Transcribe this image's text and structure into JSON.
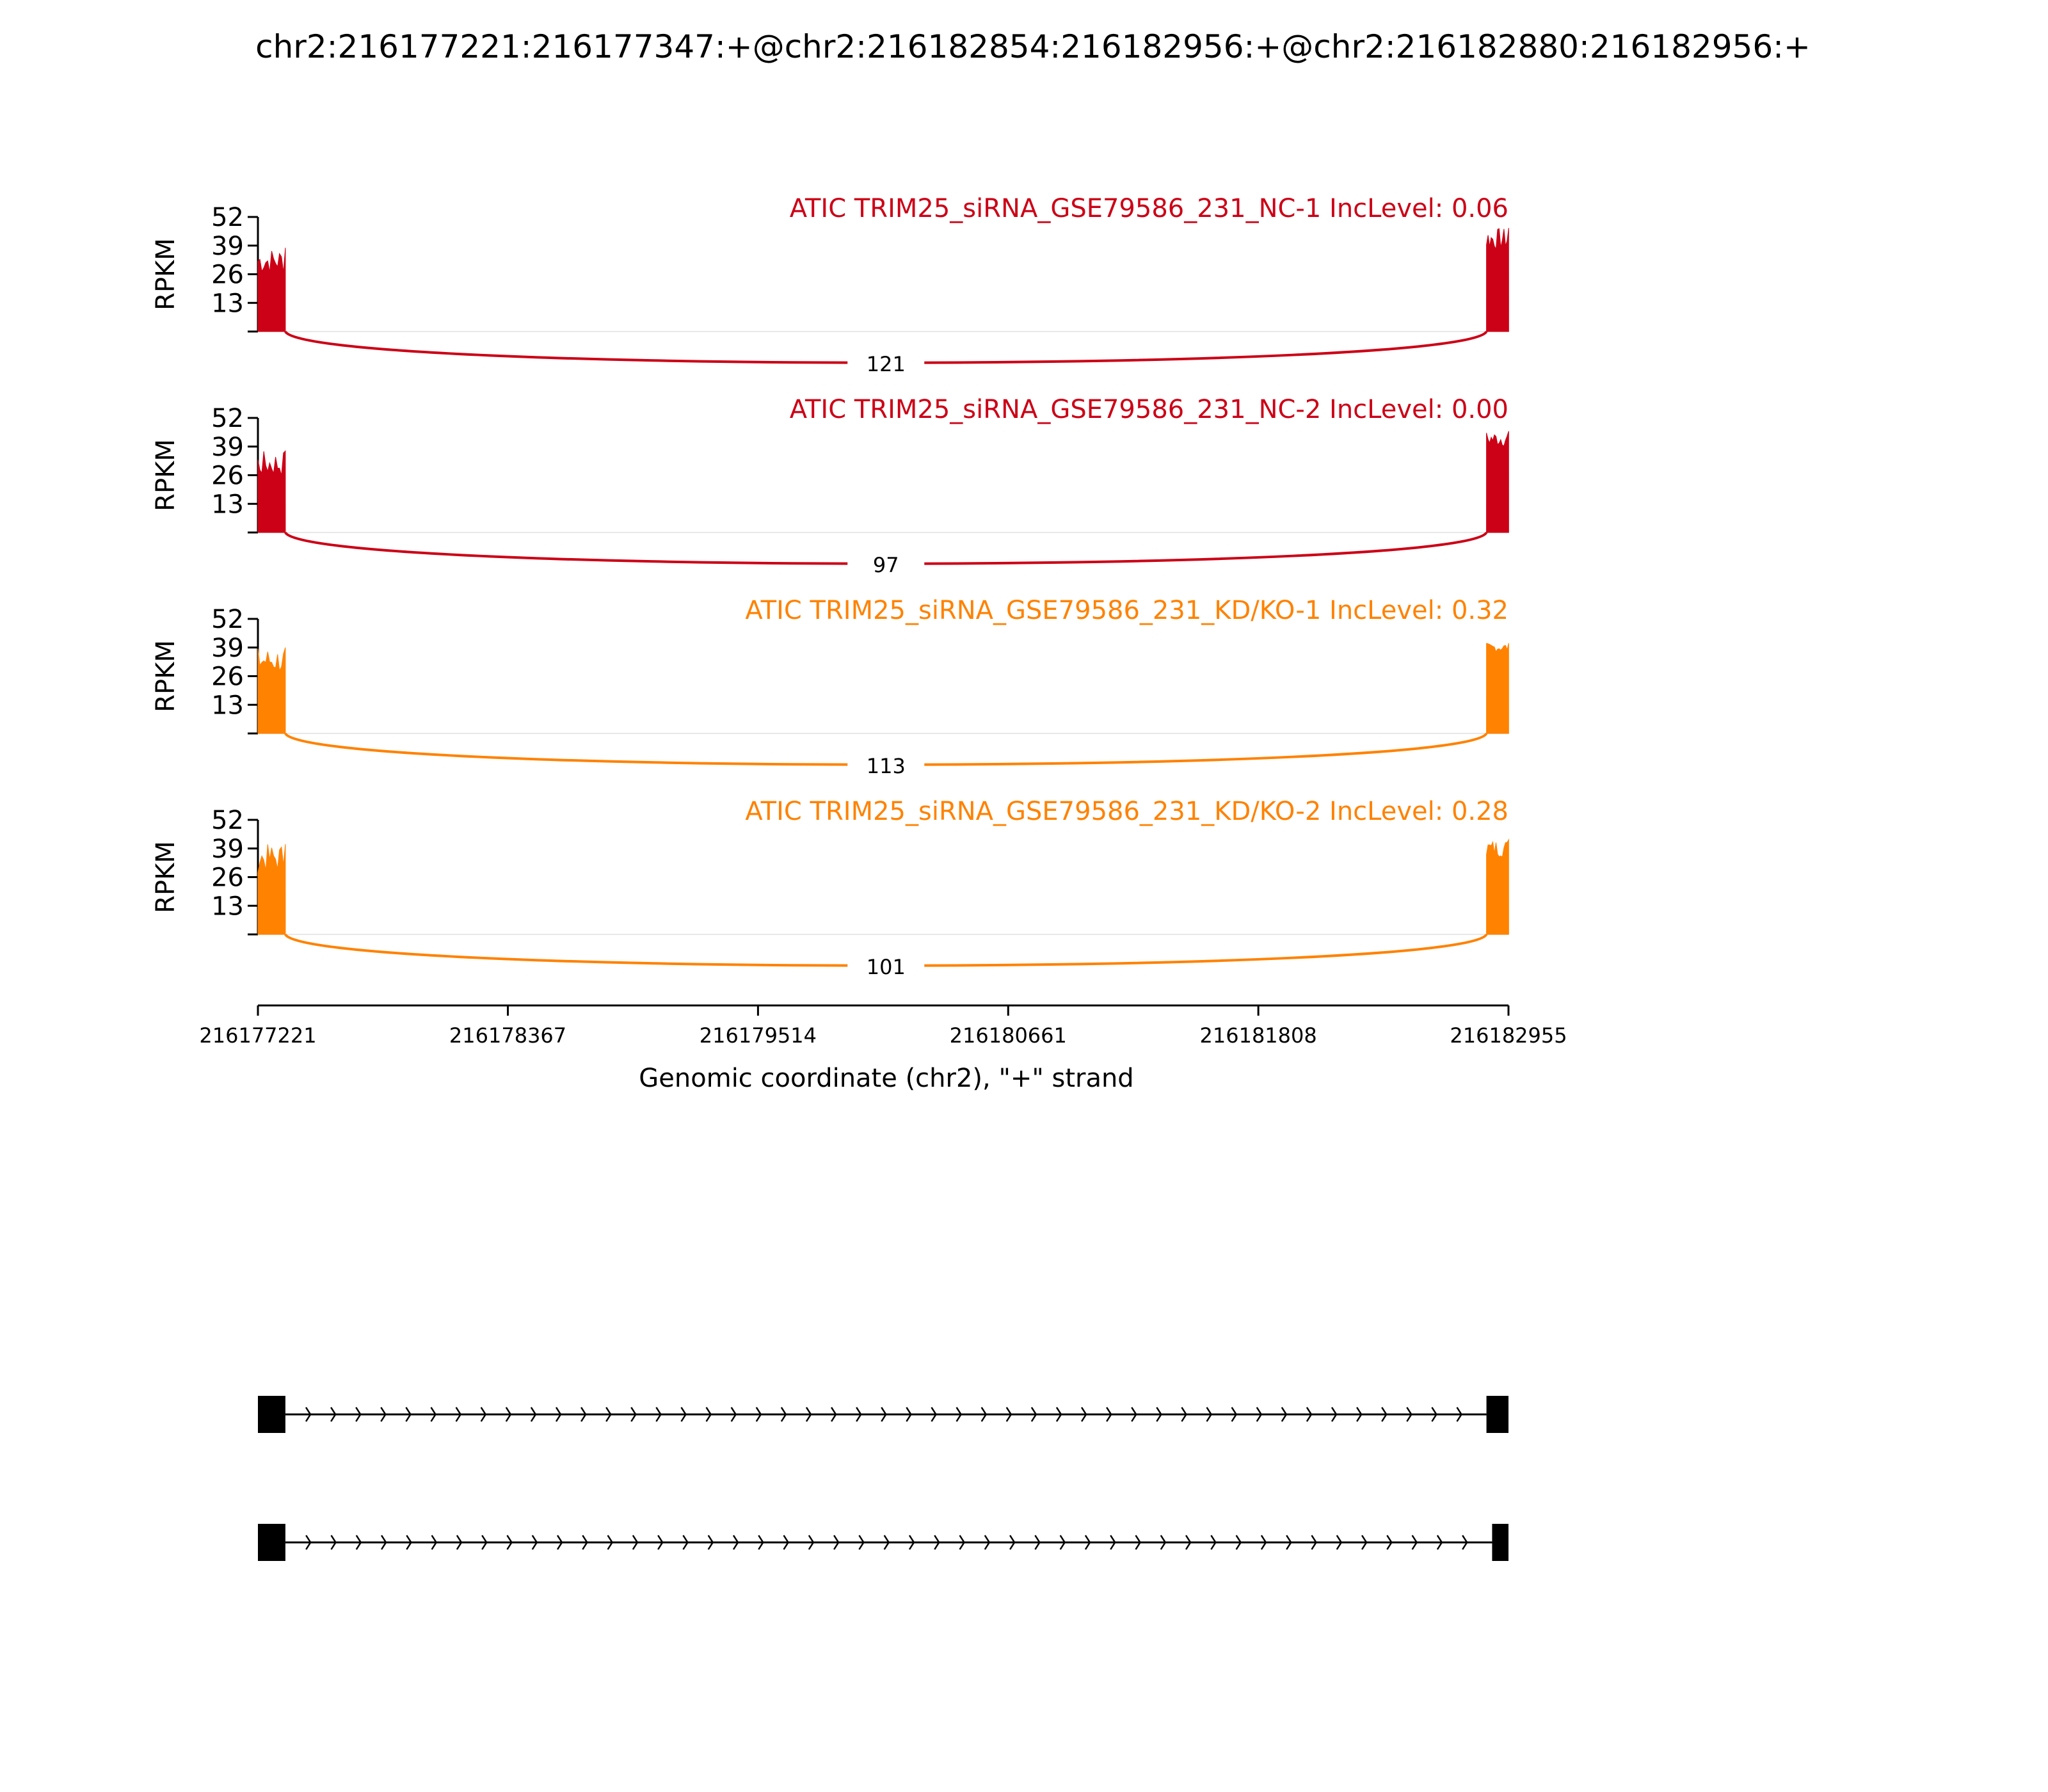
{
  "title": "chr2:216177221:216177347:+@chr2:216182854:216182956:+@chr2:216182880:216182956:+",
  "colors": {
    "nc": "#cc0016",
    "kd": "#ff8200",
    "axis": "#000000",
    "gene": "#000000"
  },
  "chart_data": {
    "type": "area",
    "description_of_marks": "sashimi plot: read coverage per exon plus junction arcs with read counts",
    "x_range": [
      216177221,
      216182955
    ],
    "x_ticks": [
      "216177221",
      "216178367",
      "216179514",
      "216180661",
      "216181808",
      "216182955"
    ],
    "x_tick_values": [
      216177221,
      216178367,
      216179514,
      216180661,
      216181808,
      216182955
    ],
    "xlabel": "Genomic coordinate (chr2), \"+\" strand",
    "ylabel": "RPKM",
    "ylim": [
      0,
      52
    ],
    "y_ticks": [
      "13",
      "26",
      "39",
      "52"
    ],
    "y_tick_values": [
      13,
      26,
      39,
      52
    ],
    "exon1": [
      216177221,
      216177347
    ],
    "exon2": [
      216182854,
      216182956
    ],
    "tracks": [
      {
        "label": "ATIC TRIM25_siRNA_GSE79586_231_NC-1 IncLevel: 0.06",
        "color_key": "nc",
        "exon1_peak": 38,
        "exon1_base": 26,
        "exon2_peak": 47,
        "exon2_base": 37,
        "junction": {
          "from": 216177347,
          "to": 216182854,
          "count": "121"
        }
      },
      {
        "label": "ATIC TRIM25_siRNA_GSE79586_231_NC-2 IncLevel: 0.00",
        "color_key": "nc",
        "exon1_peak": 37,
        "exon1_base": 25,
        "exon2_peak": 46,
        "exon2_base": 39,
        "junction": {
          "from": 216177347,
          "to": 216182854,
          "count": "97"
        }
      },
      {
        "label": "ATIC TRIM25_siRNA_GSE79586_231_KD/KO-1 IncLevel: 0.32",
        "color_key": "kd",
        "exon1_peak": 39,
        "exon1_base": 27,
        "exon2_peak": 41,
        "exon2_base": 37,
        "junction": {
          "from": 216177347,
          "to": 216182854,
          "count": "113"
        }
      },
      {
        "label": "ATIC TRIM25_siRNA_GSE79586_231_KD/KO-2 IncLevel: 0.28",
        "color_key": "kd",
        "exon1_peak": 41,
        "exon1_base": 28,
        "exon2_peak": 43,
        "exon2_base": 35,
        "junction": {
          "from": 216177347,
          "to": 216182854,
          "count": "101"
        }
      }
    ],
    "gene_models": [
      {
        "exons": [
          [
            216177221,
            216177347
          ],
          [
            216182854,
            216182956
          ]
        ]
      },
      {
        "exons": [
          [
            216177221,
            216177347
          ],
          [
            216182880,
            216182956
          ]
        ]
      }
    ]
  }
}
